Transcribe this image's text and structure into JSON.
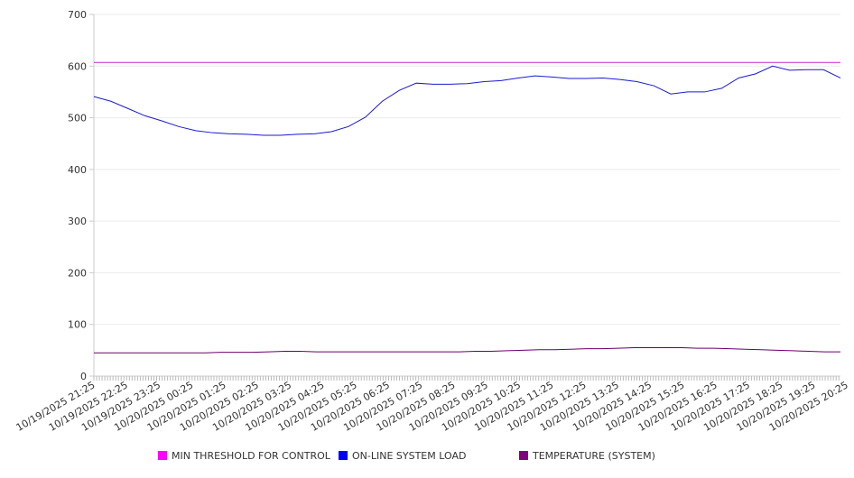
{
  "chart_data": {
    "type": "line",
    "title": "",
    "xlabel": "",
    "ylabel": "",
    "ylim": [
      0,
      700
    ],
    "yticks": [
      0,
      100,
      200,
      300,
      400,
      500,
      600,
      700
    ],
    "grid": true,
    "x_range_minutes": [
      0,
      1368
    ],
    "x_tick_labels": [
      "10/19/2025 21:25",
      "10/19/2025 22:25",
      "10/19/2025 23:25",
      "10/20/2025 00:25",
      "10/20/2025 01:25",
      "10/20/2025 02:25",
      "10/20/2025 03:25",
      "10/20/2025 04:25",
      "10/20/2025 05:25",
      "10/20/2025 06:25",
      "10/20/2025 07:25",
      "10/20/2025 08:25",
      "10/20/2025 09:25",
      "10/20/2025 10:25",
      "10/20/2025 11:25",
      "10/20/2025 12:25",
      "10/20/2025 13:25",
      "10/20/2025 14:25",
      "10/20/2025 15:25",
      "10/20/2025 16:25",
      "10/20/2025 17:25",
      "10/20/2025 18:25",
      "10/20/2025 19:25",
      "10/20/2025 20:25"
    ],
    "legend_position": "bottom",
    "series": [
      {
        "name": "MIN THRESHOLD FOR CONTROL",
        "color": "#ff00ff",
        "line_color": "#cc22cc",
        "constant": 607
      },
      {
        "name": "ON-LINE SYSTEM LOAD",
        "color": "#0000ff",
        "line_color": "#1a1ad0",
        "values": [
          541,
          532,
          518,
          504,
          494,
          483,
          475,
          471,
          469,
          468,
          466,
          466,
          468,
          469,
          473,
          483,
          501,
          532,
          553,
          567,
          565,
          565,
          566,
          570,
          572,
          577,
          581,
          579,
          576,
          576,
          577,
          574,
          570,
          562,
          546,
          550,
          550,
          557,
          577,
          585,
          600,
          592,
          593,
          593,
          577
        ]
      },
      {
        "name": "TEMPERATURE (SYSTEM)",
        "color": "#800080",
        "line_color": "#6a006a",
        "values": [
          45,
          45,
          45,
          45,
          45,
          45,
          45,
          45,
          46,
          46,
          46,
          47,
          48,
          48,
          47,
          47,
          47,
          47,
          47,
          47,
          47,
          47,
          47,
          47,
          48,
          48,
          49,
          50,
          51,
          51,
          52,
          53,
          53,
          54,
          55,
          55,
          55,
          55,
          54,
          54,
          53,
          52,
          51,
          50,
          49,
          48,
          47,
          47
        ]
      }
    ]
  }
}
